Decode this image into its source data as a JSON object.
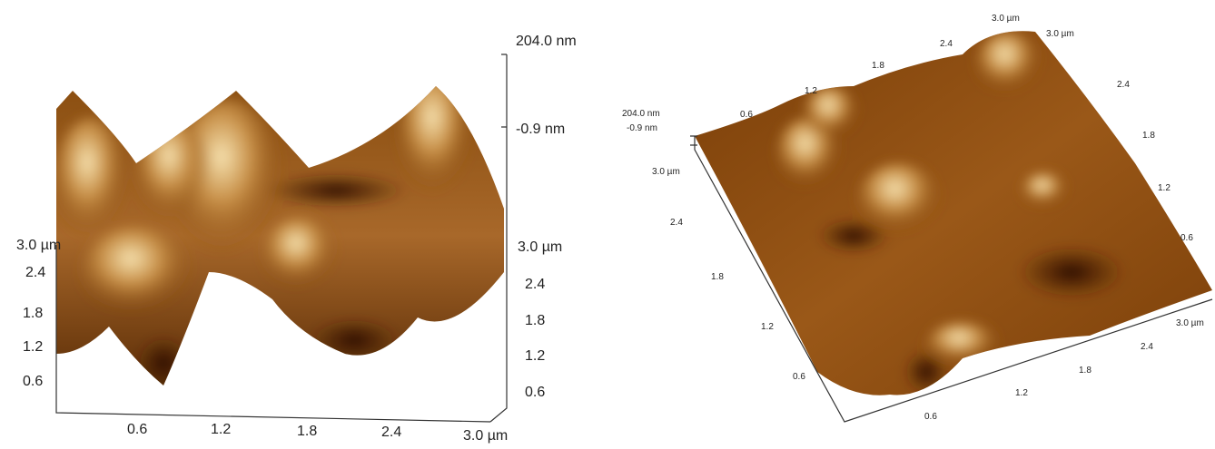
{
  "left_panel": {
    "z_labels": [
      "204.0 nm",
      "-0.9 nm"
    ],
    "left_axis": [
      "3.0 µm",
      "2.4",
      "1.8",
      "1.2",
      "0.6"
    ],
    "right_axis": [
      "3.0 µm",
      "2.4",
      "1.8",
      "1.2",
      "0.6"
    ],
    "bottom_axis": [
      "0.6",
      "1.2",
      "1.8",
      "2.4",
      "3.0 µm"
    ]
  },
  "right_panel": {
    "z_labels": [
      "204.0 nm",
      "-0.9 nm"
    ],
    "left_axis": [
      "3.0 µm",
      "2.4",
      "1.8",
      "1.2",
      "0.6"
    ],
    "top_axis": [
      "0.6",
      "1.2",
      "1.8",
      "2.4",
      "3.0 µm"
    ],
    "right_axis": [
      "3.0 µm",
      "2.4",
      "1.8",
      "1.2",
      "0.6"
    ],
    "bottom_axis": [
      "0.6",
      "1.2",
      "1.8",
      "2.4",
      "3.0 µm"
    ]
  }
}
